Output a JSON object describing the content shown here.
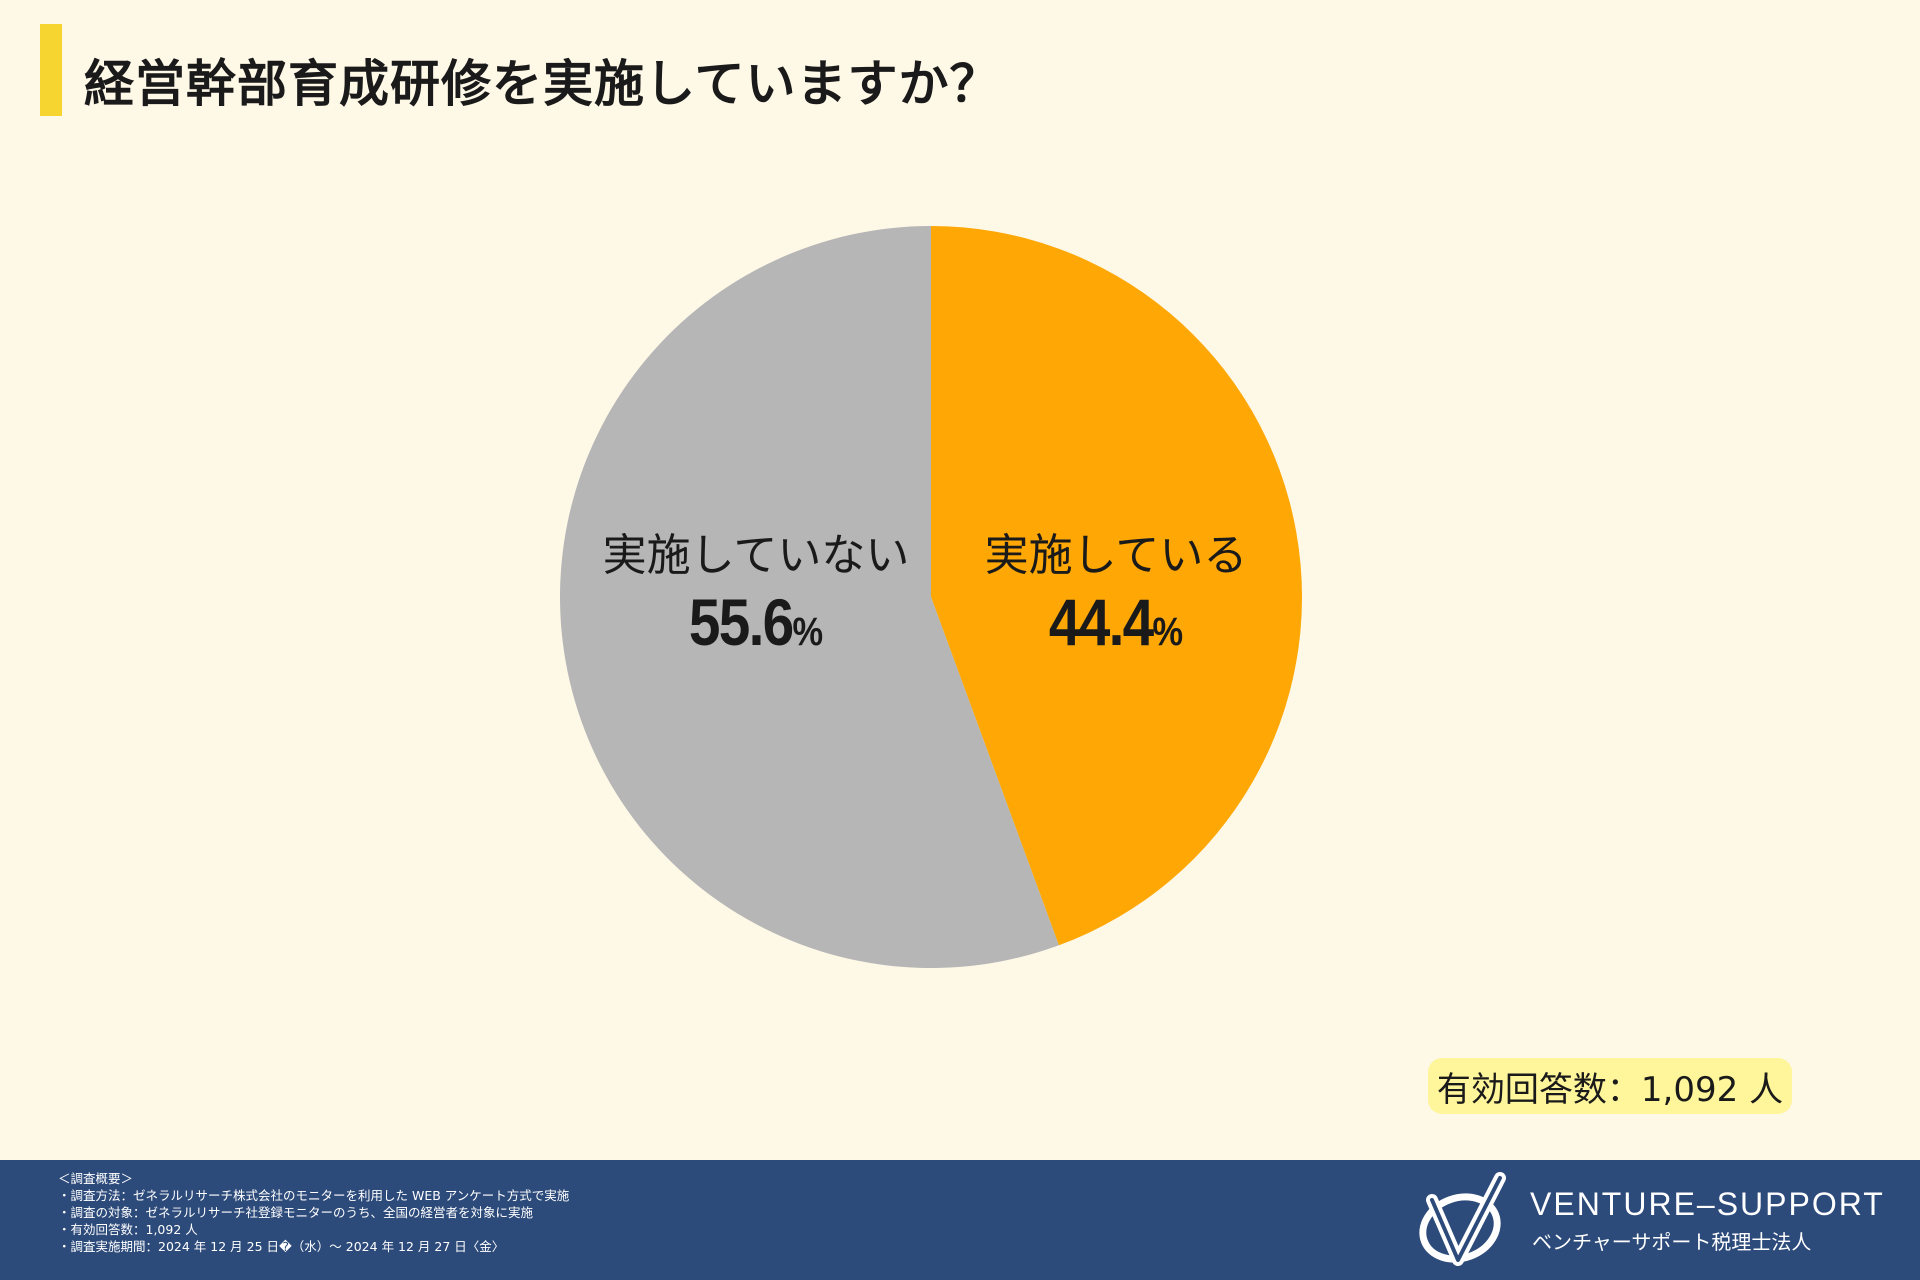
{
  "header": {
    "title": "経営幹部育成研修を実施していますか？"
  },
  "chart_data": {
    "type": "pie",
    "categories": [
      "実施している",
      "実施していない"
    ],
    "values": [
      44.4,
      55.6
    ],
    "value_labels": [
      "44.4",
      "55.6"
    ],
    "percent_sign": "%",
    "colors": [
      "#fea705",
      "#b6b6b6"
    ],
    "start_angle": "12 o'clock",
    "direction": "clockwise"
  },
  "responses_label": "有効回答数：1,092 人",
  "footer": {
    "notes": [
      "＜調査概要＞",
      "・調査方法：ゼネラルリサーチ株式会社のモニターを利用した WEB アンケート方式で実施",
      "・調査の対象：ゼネラルリサーチ社登録モニターのうち、全国の経営者を対象に実施",
      "・有効回答数：1,092 人",
      "・調査実施期間：2024 年 12 月 25 日�（水）～ 2024 年 12 月 27 日〈金〉"
    ],
    "brand_name": "VENTURE–SUPPORT",
    "brand_sub": "ベンチャーサポート税理士法人",
    "logo_icon": "venture-support-logo-icon"
  }
}
